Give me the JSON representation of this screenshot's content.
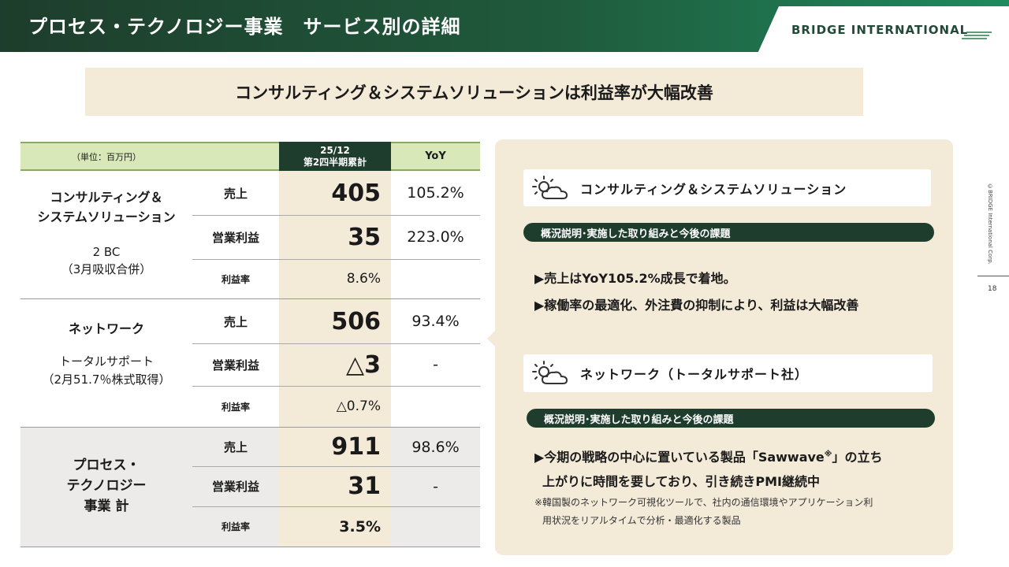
{
  "header": {
    "title": "プロセス・テクノロジー事業　サービス別の詳細",
    "logo": "BRIDGE INTERNATIONAL"
  },
  "headline": "コンサルティング＆システムソリューションは利益率が大幅改善",
  "table": {
    "unit_label": "（単位：百万円）",
    "col_period_line1": "25/12",
    "col_period_line2": "第2四半期累計",
    "col_yoy": "YoY",
    "groups": [
      {
        "name_line1": "コンサルティング＆",
        "name_line2": "システムソリューション",
        "sub_line1": "2 BC",
        "sub_line2": "（3月吸収合併）",
        "rows": [
          {
            "metric": "売上",
            "value": "405",
            "yoy": "105.2%"
          },
          {
            "metric": "営業利益",
            "value": "35",
            "yoy": "223.0%"
          },
          {
            "metric": "利益率",
            "value": "8.6%",
            "yoy": ""
          }
        ]
      },
      {
        "name_line1": "ネットワーク",
        "sub_line1": "トータルサポート",
        "sub_line2": "（2月51.7％株式取得）",
        "rows": [
          {
            "metric": "売上",
            "value": "506",
            "yoy": "93.4%"
          },
          {
            "metric": "営業利益",
            "value": "△3",
            "yoy": "-"
          },
          {
            "metric": "利益率",
            "value": "△0.7%",
            "yoy": ""
          }
        ]
      },
      {
        "name_line1": "プロセス・",
        "name_line2": "テクノロジー",
        "name_line3": "事業 計",
        "rows": [
          {
            "metric": "売上",
            "value": "911",
            "yoy": "98.6%"
          },
          {
            "metric": "営業利益",
            "value": "31",
            "yoy": "-"
          },
          {
            "metric": "利益率",
            "value": "3.5%",
            "yoy": ""
          }
        ]
      }
    ]
  },
  "panel": {
    "section1": {
      "title": "コンサルティング＆システムソリューション",
      "pill": "概況説明･実施した取り組みと今後の課題",
      "bullets": [
        "▶売上はYoY105.2%成長で着地。",
        "▶稼働率の最適化、外注費の抑制により、利益は大幅改善"
      ]
    },
    "section2": {
      "title": "ネットワーク（トータルサポート社）",
      "pill": "概況説明･実施した取り組みと今後の課題",
      "bullet_line1_pre": "▶今期の戦略の中心に置いている製品「Sawwave",
      "bullet_line1_sup": "※",
      "bullet_line1_post": "」の立ち",
      "bullet_line2": "上がりに時間を要しており、引き続きPMI継続中",
      "note_line1": "※韓国製のネットワーク可視化ツールで、社内の通信環境やアプリケーション利",
      "note_line2": "用状況をリアルタイムで分析・最適化する製品"
    }
  },
  "side_note": "©BRIDGE International Corp.",
  "page_number": "18",
  "colors": {
    "dark_green": "#1e3d2c",
    "light_green": "#d8e8b8",
    "beige": "#f3ead8",
    "gray_band": "#ecebe9"
  }
}
